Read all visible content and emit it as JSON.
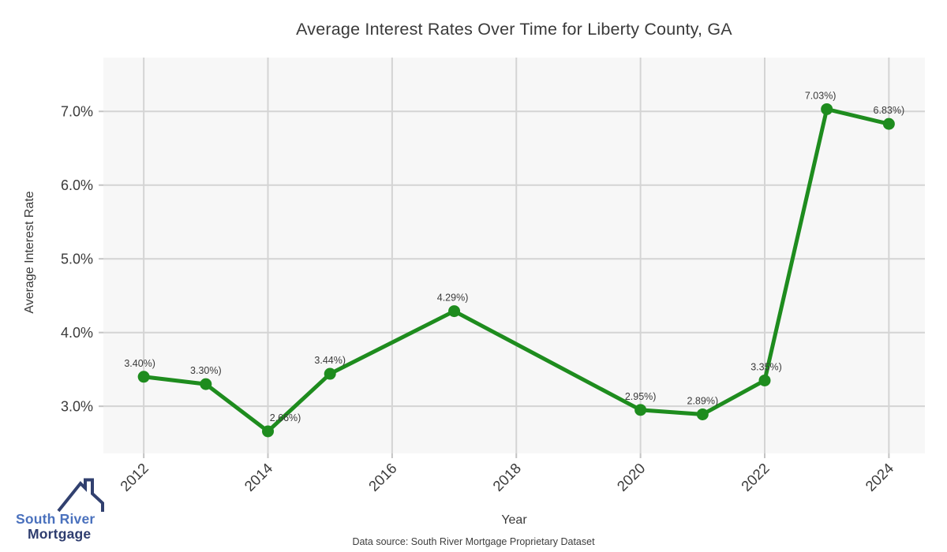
{
  "page": {
    "footer": "Data source: South River Mortgage Proprietary Dataset"
  },
  "logo": {
    "line1": "South River",
    "line2": "Mortgage",
    "color_primary": "#4a71bd",
    "color_secondary": "#2e3d6f"
  },
  "chart_data": {
    "type": "line",
    "title": "Average Interest Rates Over Time for Liberty County, GA",
    "xlabel": "Year",
    "ylabel": "Average Interest Rate",
    "x": [
      2012,
      2013,
      2014,
      2015,
      2017,
      2020,
      2021,
      2022,
      2023,
      2024
    ],
    "y": [
      3.4,
      3.3,
      2.66,
      3.44,
      4.29,
      2.95,
      2.89,
      3.35,
      7.03,
      6.83
    ],
    "point_labels": [
      "3.40%)",
      "3.30%)",
      "2.66%)",
      "3.44%)",
      "4.29%)",
      "2.95%)",
      "2.89%)",
      "3.35%)",
      "7.03%)",
      "6.83%)"
    ],
    "label_dx": [
      -5,
      0,
      22,
      0,
      -2,
      0,
      0,
      2,
      -8,
      0
    ],
    "xticks": [
      2012,
      2014,
      2016,
      2018,
      2020,
      2022,
      2024
    ],
    "xtick_labels": [
      "2012",
      "2014",
      "2016",
      "2018",
      "2020",
      "2022",
      "2024"
    ],
    "yticks": [
      3,
      4,
      5,
      6,
      7
    ],
    "ytick_labels": [
      "3.0%",
      "4.0%",
      "5.0%",
      "6.0%",
      "7.0%"
    ],
    "xlim": [
      2011.35,
      2024.58
    ],
    "ylim": [
      2.36,
      7.73
    ],
    "grid": true,
    "legend": "none",
    "line_color": "#1e8c1e",
    "marker_color": "#1e8c1e",
    "plot_bg_color": "#f7f7f7",
    "grid_color": "#d4d4d4",
    "tick_color": "#c4c4c4",
    "text_color": "#3a3a3a"
  }
}
